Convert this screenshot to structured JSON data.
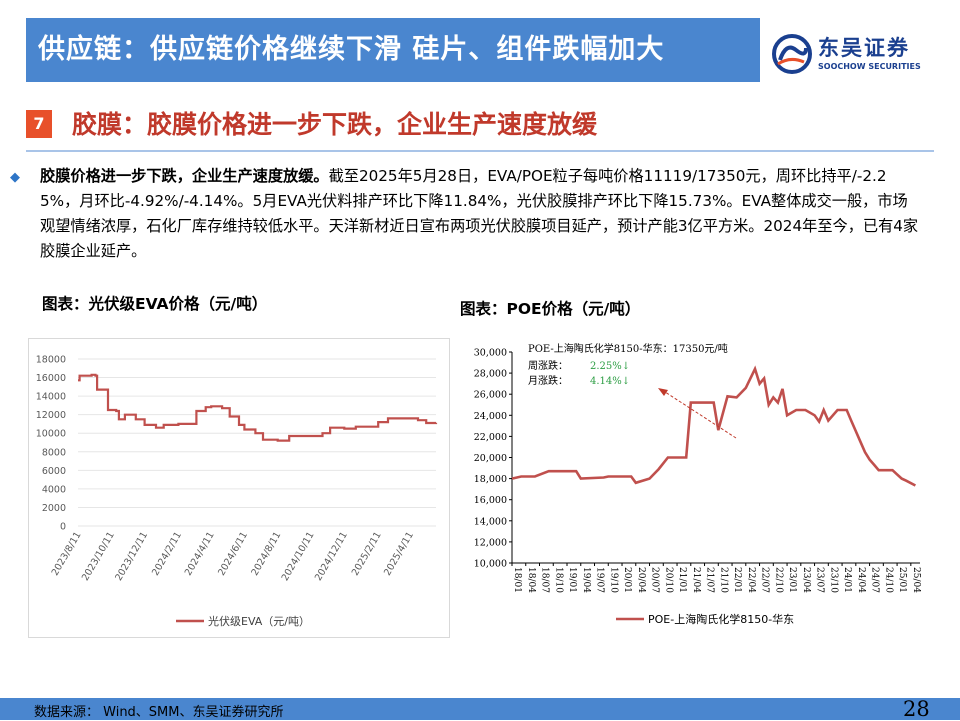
{
  "header": {
    "title": "供应链：供应链价格继续下滑 硅片、组件跌幅加大",
    "logo_cn": "东吴证券",
    "logo_en": "SOOCHOW SECURITIES"
  },
  "section": {
    "number": "7",
    "title": "胶膜：胶膜价格进一步下跌，企业生产速度放缓"
  },
  "paragraph": {
    "bold": "胶膜价格进一步下跌，企业生产速度放缓。",
    "text": "截至2025年5月28日，EVA/POE粒子每吨价格11119/17350元，周环比持平/-2.25%，月环比-4.92%/-4.14%。5月EVA光伏料排产环比下降11.84%，光伏胶膜排产环比下降15.73%。EVA整体成交一般，市场观望情绪浓厚，石化厂库存维持较低水平。天洋新材近日宣布两项光伏胶膜项目延产，预计产能3亿平方米。2024年至今，已有4家胶膜企业延产。"
  },
  "charts": {
    "eva_title": "图表：光伏级EVA价格（元/吨）",
    "poe_title": "图表：POE价格（元/吨）"
  },
  "chart_data": [
    {
      "type": "line",
      "title": "图表：光伏级EVA价格（元/吨）",
      "ylim": [
        0,
        18000
      ],
      "yticks": [
        0,
        2000,
        4000,
        6000,
        8000,
        10000,
        12000,
        14000,
        16000,
        18000
      ],
      "xtick_labels": [
        "2023/8/11",
        "2023/10/11",
        "2023/12/11",
        "2024/2/11",
        "2024/4/11",
        "2024/6/11",
        "2024/8/11",
        "2024/10/11",
        "2024/12/11",
        "2025/2/11",
        "2025/4/11"
      ],
      "series": [
        {
          "name": "光伏级EVA（元/吨）",
          "color": "#c0504d",
          "points": [
            [
              "2023-08-11",
              15700
            ],
            [
              "2023-08-14",
              16200
            ],
            [
              "2023-08-25",
              16200
            ],
            [
              "2023-09-05",
              16300
            ],
            [
              "2023-09-12",
              16200
            ],
            [
              "2023-09-15",
              14700
            ],
            [
              "2023-09-30",
              14700
            ],
            [
              "2023-10-05",
              12500
            ],
            [
              "2023-10-20",
              12400
            ],
            [
              "2023-10-25",
              11500
            ],
            [
              "2023-11-05",
              12000
            ],
            [
              "2023-11-25",
              11500
            ],
            [
              "2023-12-11",
              10900
            ],
            [
              "2024-01-01",
              10600
            ],
            [
              "2024-01-15",
              10900
            ],
            [
              "2024-02-11",
              11000
            ],
            [
              "2024-03-01",
              11000
            ],
            [
              "2024-03-15",
              12400
            ],
            [
              "2024-04-01",
              12800
            ],
            [
              "2024-04-11",
              12900
            ],
            [
              "2024-05-01",
              12700
            ],
            [
              "2024-05-15",
              11800
            ],
            [
              "2024-06-01",
              10900
            ],
            [
              "2024-06-11",
              10400
            ],
            [
              "2024-07-01",
              10000
            ],
            [
              "2024-07-15",
              9300
            ],
            [
              "2024-08-11",
              9200
            ],
            [
              "2024-09-01",
              9700
            ],
            [
              "2024-10-11",
              9700
            ],
            [
              "2024-11-01",
              10000
            ],
            [
              "2024-11-15",
              10600
            ],
            [
              "2024-12-11",
              10500
            ],
            [
              "2025-01-01",
              10700
            ],
            [
              "2025-01-15",
              10700
            ],
            [
              "2025-02-11",
              11200
            ],
            [
              "2025-03-01",
              11600
            ],
            [
              "2025-04-01",
              11600
            ],
            [
              "2025-04-11",
              11600
            ],
            [
              "2025-04-25",
              11400
            ],
            [
              "2025-05-10",
              11100
            ],
            [
              "2025-05-28",
              11119
            ]
          ]
        }
      ],
      "legend": "光伏级EVA（元/吨）",
      "legend_position": "bottom"
    },
    {
      "type": "line",
      "title": "图表：POE价格（元/吨）",
      "ylim": [
        10000,
        30000
      ],
      "yticks": [
        10000,
        12000,
        14000,
        16000,
        18000,
        20000,
        22000,
        24000,
        26000,
        28000,
        30000
      ],
      "xtick_labels": [
        "18/01",
        "18/04",
        "18/07",
        "18/10",
        "19/01",
        "19/04",
        "19/07",
        "19/10",
        "20/01",
        "20/04",
        "20/07",
        "20/10",
        "21/01",
        "21/04",
        "21/07",
        "21/10",
        "22/01",
        "22/04",
        "22/07",
        "22/10",
        "23/01",
        "23/04",
        "23/07",
        "23/10",
        "24/01",
        "24/04",
        "24/07",
        "24/10",
        "25/01",
        "25/04"
      ],
      "series": [
        {
          "name": "POE-上海陶氏化学8150-华东",
          "color": "#c0504d",
          "points": [
            [
              "2018-01",
              18000
            ],
            [
              "2018-03",
              18200
            ],
            [
              "2018-06",
              18200
            ],
            [
              "2018-09",
              18700
            ],
            [
              "2019-03",
              18700
            ],
            [
              "2019-04",
              18000
            ],
            [
              "2019-09",
              18100
            ],
            [
              "2019-10",
              18200
            ],
            [
              "2020-03",
              18200
            ],
            [
              "2020-04",
              17600
            ],
            [
              "2020-07",
              18000
            ],
            [
              "2020-09",
              18900
            ],
            [
              "2020-11",
              20000
            ],
            [
              "2021-03",
              20000
            ],
            [
              "2021-04",
              25200
            ],
            [
              "2021-09",
              25200
            ],
            [
              "2021-10",
              22600
            ],
            [
              "2021-12",
              25800
            ],
            [
              "2022-02",
              25700
            ],
            [
              "2022-04",
              26600
            ],
            [
              "2022-06",
              28400
            ],
            [
              "2022-07",
              27000
            ],
            [
              "2022-08",
              27500
            ],
            [
              "2022-09",
              25000
            ],
            [
              "2022-10",
              25700
            ],
            [
              "2022-11",
              25200
            ],
            [
              "2022-12",
              26500
            ],
            [
              "2023-01",
              24000
            ],
            [
              "2023-03",
              24500
            ],
            [
              "2023-05",
              24500
            ],
            [
              "2023-07",
              24000
            ],
            [
              "2023-08",
              23400
            ],
            [
              "2023-09",
              24500
            ],
            [
              "2023-10",
              23500
            ],
            [
              "2023-12",
              24500
            ],
            [
              "2024-02",
              24500
            ],
            [
              "2024-03",
              23500
            ],
            [
              "2024-04",
              22500
            ],
            [
              "2024-05",
              21500
            ],
            [
              "2024-06",
              20500
            ],
            [
              "2024-07",
              19800
            ],
            [
              "2024-08",
              19300
            ],
            [
              "2024-09",
              18800
            ],
            [
              "2024-12",
              18800
            ],
            [
              "2025-01",
              18400
            ],
            [
              "2025-02",
              18000
            ],
            [
              "2025-03",
              17800
            ],
            [
              "2025-05",
              17350
            ]
          ]
        }
      ],
      "annotations": [
        {
          "label": "POE-上海陶氏化学8150-华东：17350元/吨"
        },
        {
          "label": "周涨跌：",
          "value": "2.25%↓",
          "color": "#2e9e45"
        },
        {
          "label": "月涨跌：",
          "value": "4.14%↓",
          "color": "#2e9e45"
        }
      ],
      "legend": "POE-上海陶氏化学8150-华东",
      "legend_position": "bottom"
    }
  ],
  "footer": {
    "source": "数据来源：  Wind、SMM、东吴证券研究所",
    "page": "28"
  }
}
